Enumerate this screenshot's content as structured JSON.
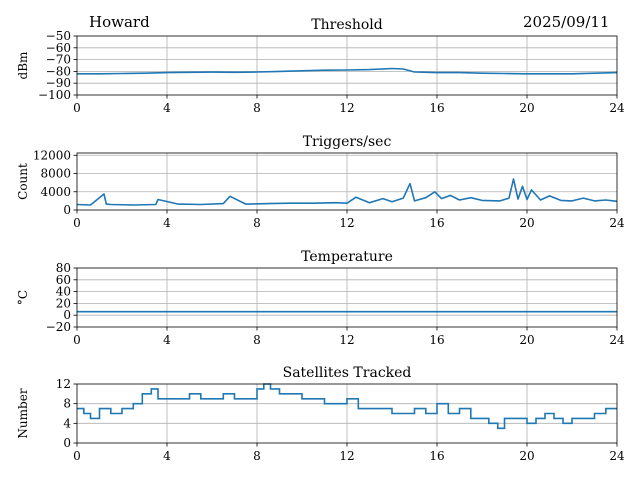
{
  "header": {
    "station": "Howard",
    "date": "2025/09/11"
  },
  "line_color": "#1f77b4",
  "chart_data": [
    {
      "type": "line",
      "title": "Threshold",
      "xlabel": "",
      "ylabel": "dBm",
      "xlim": [
        0,
        24
      ],
      "ylim": [
        -100,
        -50
      ],
      "xticks": [
        0,
        4,
        8,
        12,
        16,
        20,
        24
      ],
      "yticks": [
        -50,
        -60,
        -70,
        -80,
        -90,
        -100
      ],
      "ytick_labels": [
        "−50",
        "−60",
        "−70",
        "−80",
        "−90",
        "−100"
      ],
      "grid": true,
      "series": [
        {
          "name": "Threshold",
          "x": [
            0,
            1,
            2,
            3,
            4,
            5,
            6,
            7,
            8,
            9,
            10,
            11,
            12,
            13,
            14,
            14.5,
            15,
            16,
            17,
            18,
            19,
            20,
            21,
            22,
            23,
            24
          ],
          "y": [
            -82,
            -82,
            -81.8,
            -81.5,
            -81,
            -80.8,
            -80.6,
            -80.8,
            -80.5,
            -80,
            -79.5,
            -79,
            -78.8,
            -78.5,
            -77.5,
            -78,
            -80.5,
            -81,
            -81,
            -81.5,
            -81.8,
            -82,
            -82,
            -82,
            -81.5,
            -81
          ]
        }
      ]
    },
    {
      "type": "line",
      "title": "Triggers/sec",
      "xlabel": "",
      "ylabel": "Count",
      "xlim": [
        0,
        24
      ],
      "ylim": [
        0,
        12500
      ],
      "xticks": [
        0,
        4,
        8,
        12,
        16,
        20,
        24
      ],
      "yticks": [
        0,
        4000,
        8000,
        12000
      ],
      "ytick_labels": [
        "0",
        "4000",
        "8000",
        "12000"
      ],
      "grid": true,
      "series": [
        {
          "name": "Triggers",
          "x": [
            0,
            0.6,
            1.2,
            1.3,
            1.5,
            2.5,
            3.5,
            3.6,
            4.5,
            5.5,
            6.5,
            6.8,
            7.5,
            8.5,
            9.5,
            10.5,
            11.5,
            12,
            12.4,
            13,
            13.6,
            14,
            14.5,
            14.8,
            15,
            15.5,
            15.9,
            16.2,
            16.6,
            17,
            17.5,
            18,
            18.8,
            19.2,
            19.4,
            19.6,
            19.8,
            20,
            20.2,
            20.6,
            21,
            21.5,
            22,
            22.5,
            23,
            23.5,
            24
          ],
          "y": [
            1200,
            1100,
            3500,
            1300,
            1200,
            1100,
            1200,
            2300,
            1300,
            1200,
            1400,
            3000,
            1300,
            1400,
            1500,
            1500,
            1600,
            1500,
            2800,
            1600,
            2500,
            1800,
            2600,
            5800,
            2000,
            2700,
            4000,
            2500,
            3200,
            2200,
            2700,
            2100,
            2000,
            2600,
            6800,
            2400,
            5200,
            2300,
            4400,
            2200,
            3100,
            2100,
            2000,
            2600,
            2000,
            2200,
            1900
          ]
        }
      ]
    },
    {
      "type": "line",
      "title": "Temperature",
      "xlabel": "",
      "ylabel": "°C",
      "xlim": [
        0,
        24
      ],
      "ylim": [
        -20,
        80
      ],
      "xticks": [
        0,
        4,
        8,
        12,
        16,
        20,
        24
      ],
      "yticks": [
        -20,
        0,
        20,
        40,
        60,
        80
      ],
      "ytick_labels": [
        "−20",
        "0",
        "20",
        "40",
        "60",
        "80"
      ],
      "grid": true,
      "series": [
        {
          "name": "Temperature",
          "x": [
            0,
            24
          ],
          "y": [
            6,
            6
          ]
        }
      ]
    },
    {
      "type": "line",
      "title": "Satellites Tracked",
      "xlabel": "",
      "ylabel": "Number",
      "xlim": [
        0,
        24
      ],
      "ylim": [
        0,
        12
      ],
      "xticks": [
        0,
        4,
        8,
        12,
        16,
        20,
        24
      ],
      "yticks": [
        0,
        4,
        8,
        12
      ],
      "ytick_labels": [
        "0",
        "4",
        "8",
        "12"
      ],
      "grid": true,
      "series": [
        {
          "name": "Satellites",
          "x": [
            0,
            0.3,
            0.6,
            1.0,
            1.5,
            2.0,
            2.5,
            2.9,
            3.3,
            3.6,
            4.0,
            4.5,
            5.0,
            5.5,
            6.0,
            6.5,
            7.0,
            7.5,
            8.0,
            8.3,
            8.6,
            9.0,
            9.5,
            10.0,
            10.5,
            11.0,
            11.5,
            12.0,
            12.5,
            13.0,
            13.5,
            14.0,
            14.5,
            15.0,
            15.5,
            16.0,
            16.5,
            17.0,
            17.5,
            18.0,
            18.3,
            18.7,
            19.0,
            19.5,
            20.0,
            20.4,
            20.8,
            21.2,
            21.6,
            22.0,
            22.5,
            23.0,
            23.5,
            24.0
          ],
          "y": [
            7,
            6,
            5,
            7,
            6,
            7,
            8,
            10,
            11,
            9,
            9,
            9,
            10,
            9,
            9,
            10,
            9,
            9,
            11,
            12,
            11,
            10,
            10,
            9,
            9,
            8,
            8,
            9,
            7,
            7,
            7,
            6,
            6,
            7,
            6,
            8,
            6,
            7,
            5,
            5,
            4,
            3,
            5,
            5,
            4,
            5,
            6,
            5,
            4,
            5,
            5,
            6,
            7,
            7
          ]
        }
      ]
    }
  ]
}
